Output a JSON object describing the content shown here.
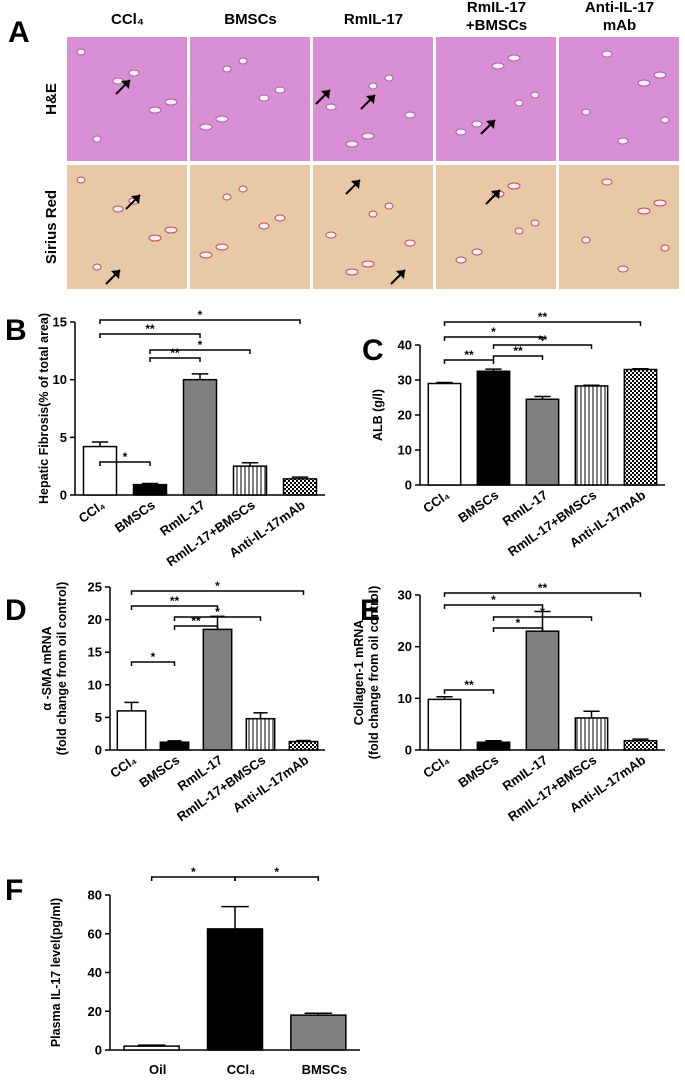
{
  "panel_a": {
    "label": "A",
    "columns": [
      [
        "CCl₄"
      ],
      [
        "BMSCs"
      ],
      [
        "RmIL-17"
      ],
      [
        "RmIL-17",
        "+BMSCs"
      ],
      [
        "Anti-IL-17",
        "mAb"
      ]
    ],
    "rows": [
      "H&E",
      "Sirius Red"
    ]
  },
  "chart_data": [
    {
      "type": "bar",
      "panel": "B",
      "ylabel": "Hepatic Fibrosis(% of total area)",
      "categories": [
        "CCl₄",
        "BMSCs",
        "RmIL-17",
        "RmIL-17+BMSCs",
        "Anti-IL-17mAb"
      ],
      "values": [
        4.2,
        0.9,
        10.0,
        2.5,
        1.4
      ],
      "errors": [
        0.4,
        0.1,
        0.5,
        0.3,
        0.15
      ],
      "colors": [
        "#ffffff",
        "#000000",
        "#808080",
        "#ffffff",
        "#ffffff"
      ],
      "hatch": [
        null,
        null,
        null,
        "vertical",
        "checker"
      ],
      "ylim": [
        0,
        15
      ],
      "yticks": [
        0,
        5,
        10,
        15
      ],
      "brackets": [
        {
          "label": "*",
          "from": 0,
          "to": 1
        },
        {
          "label": "**",
          "from": 0,
          "to": 2
        },
        {
          "label": "**",
          "from": 1,
          "to": 2
        },
        {
          "label": "*",
          "from": 1,
          "to": 3
        },
        {
          "label": "*",
          "from": 0,
          "to": 4
        }
      ]
    },
    {
      "type": "bar",
      "panel": "C",
      "ylabel": "ALB (g/l)",
      "categories": [
        "CCl₄",
        "BMSCs",
        "RmIL-17",
        "RmIL-17+BMSCs",
        "Anti-IL-17mAb"
      ],
      "values": [
        29,
        32.5,
        24.5,
        28.3,
        33
      ],
      "errors": [
        0.3,
        0.6,
        0.8,
        0.2,
        0.2
      ],
      "colors": [
        "#ffffff",
        "#000000",
        "#808080",
        "#ffffff",
        "#ffffff"
      ],
      "hatch": [
        null,
        null,
        null,
        "vertical",
        "checker"
      ],
      "ylim": [
        0,
        40
      ],
      "yticks": [
        0,
        10,
        20,
        30,
        40
      ],
      "brackets": [
        {
          "label": "**",
          "from": 0,
          "to": 1
        },
        {
          "label": "*",
          "from": 0,
          "to": 2
        },
        {
          "label": "**",
          "from": 1,
          "to": 2
        },
        {
          "label": "**",
          "from": 1,
          "to": 3
        },
        {
          "label": "**",
          "from": 0,
          "to": 4
        }
      ]
    },
    {
      "type": "bar",
      "panel": "D",
      "ylabel": [
        "α -SMA mRNA",
        "(fold change from oil control)"
      ],
      "categories": [
        "CCl₄",
        "BMSCs",
        "RmIL-17",
        "RmIL-17+BMSCs",
        "Anti-IL-17mAb"
      ],
      "values": [
        6,
        1.2,
        18.5,
        4.8,
        1.3
      ],
      "errors": [
        1.3,
        0.2,
        2.0,
        0.9,
        0.15
      ],
      "colors": [
        "#ffffff",
        "#000000",
        "#808080",
        "#ffffff",
        "#ffffff"
      ],
      "hatch": [
        null,
        null,
        null,
        "vertical",
        "checker"
      ],
      "ylim": [
        0,
        25
      ],
      "yticks": [
        0,
        5,
        10,
        15,
        20,
        25
      ],
      "brackets": [
        {
          "label": "*",
          "from": 0,
          "to": 1
        },
        {
          "label": "**",
          "from": 0,
          "to": 2
        },
        {
          "label": "**",
          "from": 1,
          "to": 2
        },
        {
          "label": "*",
          "from": 1,
          "to": 3
        },
        {
          "label": "*",
          "from": 0,
          "to": 4
        }
      ]
    },
    {
      "type": "bar",
      "panel": "E",
      "ylabel": [
        "Collagen-1 mRNA",
        "(fold change from oil control)"
      ],
      "categories": [
        "CCl₄",
        "BMSCs",
        "RmIL-17",
        "RmIL-17+BMSCs",
        "Anti-IL-17mAb"
      ],
      "values": [
        9.8,
        1.5,
        23,
        6.2,
        1.8
      ],
      "errors": [
        0.5,
        0.3,
        3.8,
        1.3,
        0.3
      ],
      "colors": [
        "#ffffff",
        "#000000",
        "#808080",
        "#ffffff",
        "#ffffff"
      ],
      "hatch": [
        null,
        null,
        null,
        "vertical",
        "checker"
      ],
      "ylim": [
        0,
        30
      ],
      "yticks": [
        0,
        10,
        20,
        30
      ],
      "brackets": [
        {
          "label": "**",
          "from": 0,
          "to": 1
        },
        {
          "label": "*",
          "from": 0,
          "to": 2
        },
        {
          "label": "*",
          "from": 1,
          "to": 2
        },
        {
          "label": "*",
          "from": 1,
          "to": 3
        },
        {
          "label": "**",
          "from": 0,
          "to": 4
        }
      ]
    },
    {
      "type": "bar",
      "panel": "F",
      "ylabel": "Plasma IL-17 level(pg/ml)",
      "categories": [
        "Oil",
        "CCl₄",
        "BMSCs"
      ],
      "values": [
        2,
        62.5,
        18
      ],
      "errors": [
        0.5,
        11.5,
        1
      ],
      "colors": [
        "#ffffff",
        "#000000",
        "#808080"
      ],
      "hatch": [
        null,
        null,
        null
      ],
      "ylim": [
        0,
        80
      ],
      "yticks": [
        0,
        20,
        40,
        60,
        80
      ],
      "brackets": [
        {
          "label": "*",
          "from": 0,
          "to": 1
        },
        {
          "label": "*",
          "from": 1,
          "to": 2
        }
      ]
    }
  ]
}
